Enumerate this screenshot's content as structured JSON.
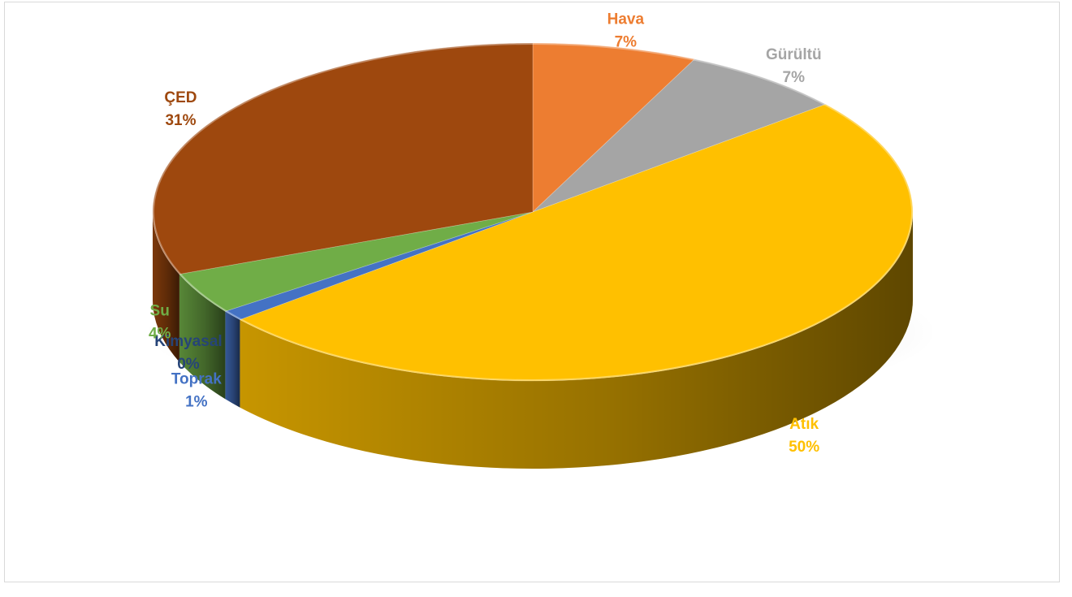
{
  "chart_data": {
    "type": "pie",
    "style": "3d",
    "title": "",
    "categories": [
      "Hava",
      "Gürültü",
      "Atık",
      "Toprak",
      "Kimyasal",
      "Su",
      "ÇED"
    ],
    "values": [
      7,
      7,
      50,
      1,
      0,
      4,
      31
    ],
    "value_labels": [
      "7%",
      "7%",
      "50%",
      "1%",
      "0%",
      "4%",
      "31%"
    ],
    "colors": [
      "#ED7D31",
      "#A5A5A5",
      "#FFC000",
      "#4472C4",
      "#264478",
      "#70AD47",
      "#9E480E"
    ],
    "legend": "none"
  }
}
